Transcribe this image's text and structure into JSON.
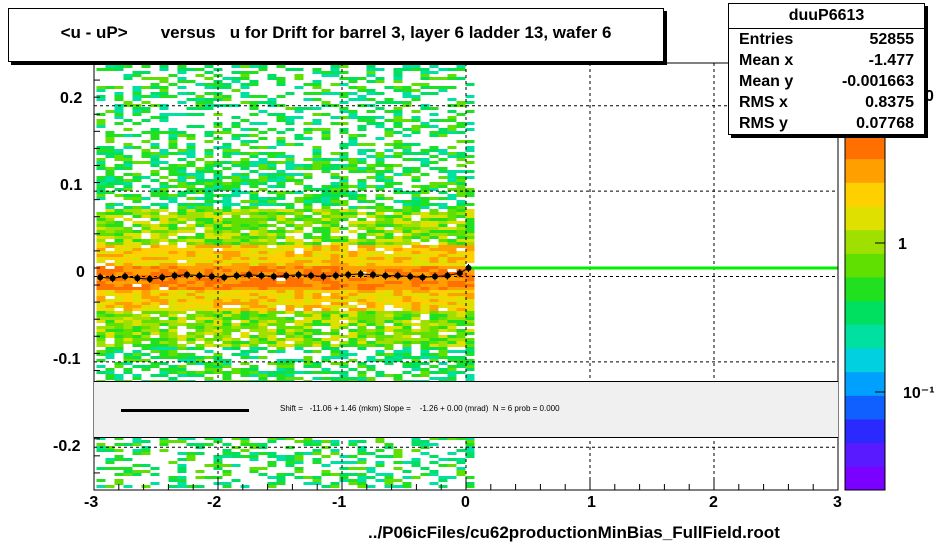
{
  "chart_data": {
    "type": "heatmap",
    "title": "<u - uP>       versus   u for Drift for barrel 3, layer 6 ladder 13, wafer 6",
    "xlim": [
      -3,
      3
    ],
    "ylim": [
      -0.25,
      0.25
    ],
    "x_ticks": [
      "-3",
      "-2",
      "-1",
      "0",
      "1",
      "2",
      "3"
    ],
    "y_ticks": [
      "0.2",
      "0.1",
      "0",
      "-0.1",
      "-0.2"
    ],
    "z_ticks": [
      "1",
      "10⁻¹"
    ],
    "z_partial_label": "0",
    "grid": true,
    "profile_series": {
      "name": "mean",
      "x": [
        -2.95,
        -2.85,
        -2.75,
        -2.65,
        -2.55,
        -2.45,
        -2.35,
        -2.25,
        -2.15,
        -2.05,
        -1.95,
        -1.85,
        -1.75,
        -1.65,
        -1.55,
        -1.45,
        -1.35,
        -1.25,
        -1.15,
        -1.05,
        -0.95,
        -0.85,
        -0.75,
        -0.65,
        -0.55,
        -0.45,
        -0.35,
        -0.25,
        -0.15,
        -0.05,
        0.02
      ],
      "y": [
        -0.001,
        -0.002,
        0.0,
        -0.002,
        -0.003,
        -0.001,
        0.001,
        0.002,
        0.001,
        0.0,
        -0.001,
        0.001,
        0.002,
        0.001,
        0.0,
        0.001,
        0.002,
        0.001,
        0.0,
        0.001,
        0.002,
        0.003,
        0.002,
        0.001,
        0.001,
        0.0,
        -0.001,
        0.0,
        0.001,
        0.004,
        0.01
      ]
    },
    "fit_line": {
      "x": [
        0.0,
        3.0
      ],
      "y": [
        0.01,
        0.01
      ],
      "color": "#00ee00"
    },
    "stats": {
      "name": "duuP6613",
      "rows": [
        {
          "k": "Entries",
          "v": "52855"
        },
        {
          "k": "Mean x",
          "v": "-1.477"
        },
        {
          "k": "Mean y",
          "v": "-0.001663"
        },
        {
          "k": "RMS x",
          "v": "0.8375"
        },
        {
          "k": "RMS y",
          "v": "0.07768"
        }
      ]
    },
    "fit_text": "Shift =   -11.06 + 1.46 (mkm) Slope =    -1.26 + 0.00 (mrad)  N = 6 prob = 0.000",
    "footer": "../P06icFiles/cu62productionMinBias_FullField.root",
    "palette": [
      "#7a00ff",
      "#5a1aff",
      "#2a2aff",
      "#1060ff",
      "#00a0ff",
      "#00d0e0",
      "#00e0a0",
      "#00e060",
      "#20e020",
      "#60e000",
      "#a0e000",
      "#e0e000",
      "#ffd000",
      "#ffa000",
      "#ff7000"
    ]
  }
}
